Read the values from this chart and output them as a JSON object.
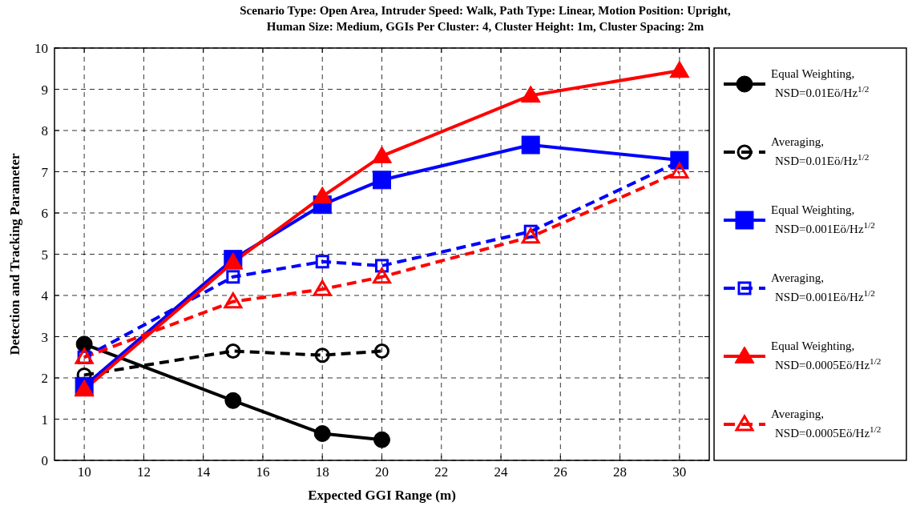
{
  "chart_data": {
    "type": "line",
    "title": "Scenario Type: Open Area, Intruder Speed: Walk, Path Type: Linear, Motion Position: Upright,\nHuman Size: Medium, GGIs Per Cluster: 4, Cluster Height: 1m, Cluster Spacing: 2m",
    "xlabel": "Expected GGI Range (m)",
    "ylabel": "Detection and Tracking Parameter",
    "xlim": [
      9,
      31
    ],
    "xticks": [
      10,
      12,
      14,
      16,
      18,
      20,
      22,
      24,
      26,
      28,
      30
    ],
    "ylim": [
      0,
      10
    ],
    "yticks": [
      0,
      1,
      2,
      3,
      4,
      5,
      6,
      7,
      8,
      9,
      10
    ],
    "grid": true,
    "legend": "right",
    "series": [
      {
        "name": "Equal Weighting, NSD=0.01Eö/Hz$^{1/2}$",
        "color": "#000000",
        "marker": "circle",
        "line_style": "solid",
        "x": [
          10,
          15,
          18,
          20
        ],
        "values": [
          2.82,
          1.45,
          0.65,
          0.5
        ]
      },
      {
        "name": "Averaging, NSD=0.01Eö/Hz$^{1/2}$",
        "color": "#000000",
        "marker": "circle",
        "line_style": "dashed",
        "x": [
          10,
          15,
          18,
          20
        ],
        "values": [
          2.07,
          2.65,
          2.55,
          2.65
        ]
      },
      {
        "name": "Equal Weighting, NSD=0.001Eö/Hz$^{1/2}$",
        "color": "#0000ff",
        "marker": "square",
        "line_style": "solid",
        "x": [
          10,
          15,
          18,
          20,
          25,
          30
        ],
        "values": [
          1.8,
          4.88,
          6.2,
          6.8,
          7.65,
          7.28
        ]
      },
      {
        "name": "Averaging, NSD=0.001Eö/Hz$^{1/2}$",
        "color": "#0000ff",
        "marker": "square",
        "line_style": "dashed",
        "x": [
          10,
          15,
          18,
          20,
          25,
          30
        ],
        "values": [
          2.5,
          4.45,
          4.82,
          4.72,
          5.55,
          7.25
        ]
      },
      {
        "name": "Equal Weighting, NSD=0.0005Eö/Hz$^{1/2}$",
        "color": "#ff0000",
        "marker": "triangle",
        "line_style": "solid",
        "x": [
          10,
          15,
          18,
          20,
          25,
          30
        ],
        "values": [
          1.72,
          4.8,
          6.4,
          7.38,
          8.85,
          9.45
        ]
      },
      {
        "name": "Averaging, NSD=0.0005Eö/Hz$^{1/2}$",
        "color": "#ff0000",
        "marker": "triangle",
        "line_style": "dashed",
        "x": [
          10,
          15,
          18,
          20,
          25,
          30
        ],
        "values": [
          2.5,
          3.85,
          4.15,
          4.45,
          5.42,
          7.0
        ]
      }
    ]
  }
}
